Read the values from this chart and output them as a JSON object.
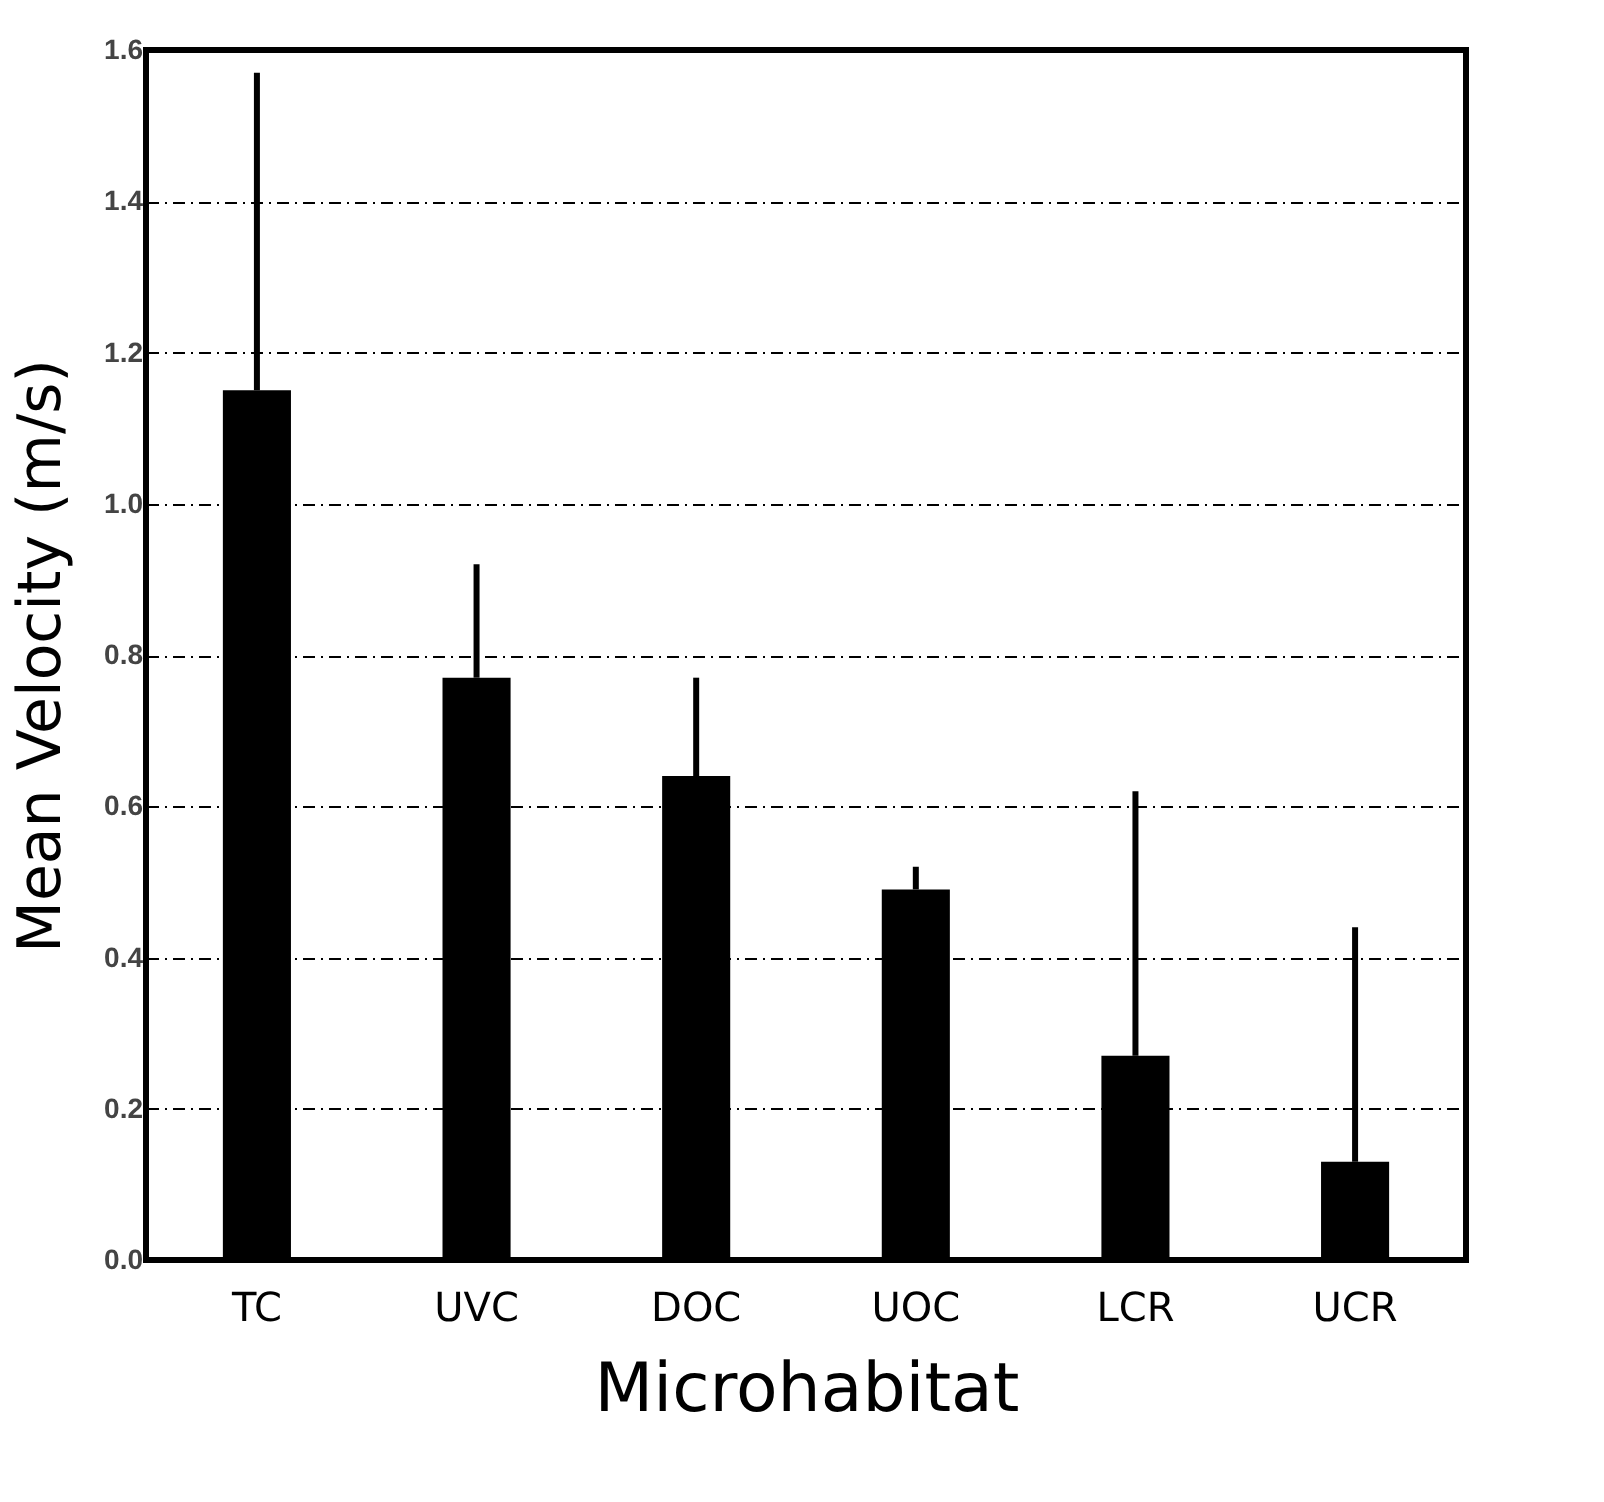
{
  "chart_data": {
    "type": "bar",
    "xlabel": "Microhabitat",
    "ylabel": "Mean Velocity (m/s)",
    "categories": [
      "TC",
      "UVC",
      "DOC",
      "UOC",
      "LCR",
      "UCR"
    ],
    "series": [
      {
        "color": "#000000",
        "values": [
          1.15,
          0.77,
          0.64,
          0.49,
          0.27,
          0.13
        ],
        "errors": [
          [
            1.15,
            1.57
          ],
          [
            0.77,
            0.92
          ],
          [
            0.64,
            0.77
          ],
          [
            0.49,
            0.52
          ],
          [
            0.27,
            0.62
          ],
          [
            0.13,
            0.44
          ]
        ]
      }
    ],
    "ylim": [
      0,
      1.6
    ],
    "yticks": [
      {
        "value": 0,
        "label": "0.0"
      },
      0.2,
      0.4,
      0.6,
      0.8,
      {
        "value": 1.0,
        "label": "1.0"
      },
      1.2,
      1.4,
      1.6
    ],
    "grid": "y"
  }
}
